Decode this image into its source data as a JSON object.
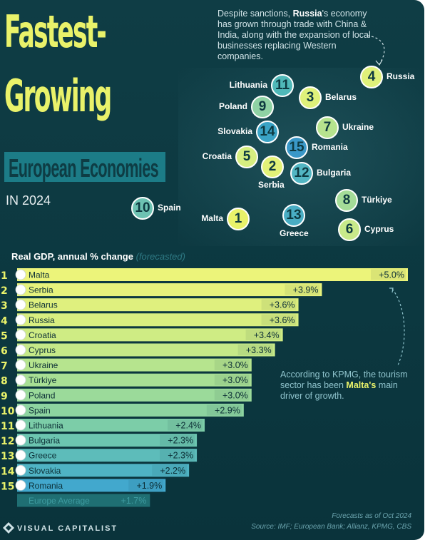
{
  "title": {
    "line1": "Fastest-",
    "line2": "Growing",
    "subtitle": "European Economies",
    "year": "IN 2024"
  },
  "notes": {
    "top_pre": "Despite sanctions, ",
    "top_bold": "Russia",
    "top_post": "'s economy has grown through trade with China & India, along with the expansion of local businesses replacing Western companies.",
    "bottom_pre": "According to KPMG, the tourism sector has been ",
    "bottom_bold": "Malta's",
    "bottom_post": " main driver of growth."
  },
  "chart_heading": "Real GDP, annual % change",
  "chart_heading_note": "(forecasted)",
  "map_markers": [
    {
      "rank": "4",
      "country": "Russia",
      "color": "#dff17a"
    },
    {
      "rank": "11",
      "country": "Lithuania",
      "color": "#4fb8b8"
    },
    {
      "rank": "3",
      "country": "Belarus",
      "color": "#dff17a"
    },
    {
      "rank": "9",
      "country": "Poland",
      "color": "#8fd2a4"
    },
    {
      "rank": "14",
      "country": "Slovakia",
      "color": "#3aa3c5"
    },
    {
      "rank": "7",
      "country": "Ukraine",
      "color": "#b6e38e"
    },
    {
      "rank": "15",
      "country": "Romania",
      "color": "#3a98c8"
    },
    {
      "rank": "5",
      "country": "Croatia",
      "color": "#d6ee80"
    },
    {
      "rank": "2",
      "country": "Serbia",
      "color": "#e3f278"
    },
    {
      "rank": "12",
      "country": "Bulgaria",
      "color": "#52b6c3"
    },
    {
      "rank": "8",
      "country": "Türkiye",
      "color": "#a4dc98"
    },
    {
      "rank": "10",
      "country": "Spain",
      "color": "#6dc2b2"
    },
    {
      "rank": "1",
      "country": "Malta",
      "color": "#e9f26a"
    },
    {
      "rank": "13",
      "country": "Greece",
      "color": "#49adc3"
    },
    {
      "rank": "6",
      "country": "Cyprus",
      "color": "#c8e98a"
    }
  ],
  "chart_data": {
    "type": "bar",
    "orientation": "horizontal",
    "title": "Real GDP, annual % change (forecasted)",
    "ranks": [
      "1",
      "2",
      "3",
      "4",
      "5",
      "6",
      "7",
      "8",
      "9",
      "10",
      "11",
      "12",
      "13",
      "14",
      "15"
    ],
    "categories": [
      "Malta",
      "Serbia",
      "Belarus",
      "Russia",
      "Croatia",
      "Cyprus",
      "Ukraine",
      "Türkiye",
      "Poland",
      "Spain",
      "Lithuania",
      "Bulgaria",
      "Greece",
      "Slovakia",
      "Romania"
    ],
    "values": [
      5.0,
      3.9,
      3.6,
      3.6,
      3.4,
      3.3,
      3.0,
      3.0,
      3.0,
      2.9,
      2.4,
      2.3,
      2.3,
      2.2,
      1.9
    ],
    "value_labels": [
      "+5.0%",
      "+3.9%",
      "+3.6%",
      "+3.6%",
      "+3.4%",
      "+3.3%",
      "+3.0%",
      "+3.0%",
      "+3.0%",
      "+2.9%",
      "+2.4%",
      "+2.3%",
      "+2.3%",
      "+2.2%",
      "+1.9%"
    ],
    "colors": [
      "#ecf47a",
      "#e6f27c",
      "#dff07e",
      "#d8ee80",
      "#cfec84",
      "#c5e988",
      "#b6e48e",
      "#a8df94",
      "#9bda9a",
      "#8dd4a0",
      "#7ccda8",
      "#6cc5b0",
      "#5dbcba",
      "#4fb3c4",
      "#42a8cd"
    ],
    "average": {
      "label": "Europe Average",
      "value": 1.7,
      "value_label": "+1.7%",
      "color": "#1f6f73"
    },
    "xlim": [
      0,
      5.0
    ]
  },
  "footer": {
    "date": "Forecasts as of Oct 2024",
    "source": "Source: IMF; European Bank; Allianz, KPMG, CBS",
    "brand": "VISUAL CAPITALIST"
  }
}
